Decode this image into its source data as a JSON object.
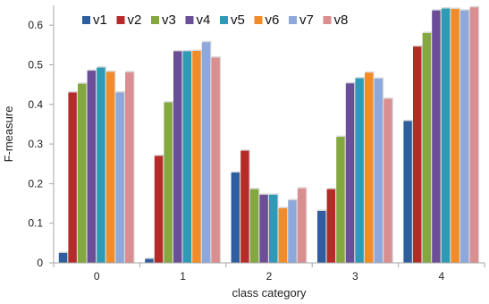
{
  "chart_data": {
    "type": "bar",
    "title": "",
    "xlabel": "class category",
    "ylabel": "F-measure",
    "categories": [
      "0",
      "1",
      "2",
      "3",
      "4"
    ],
    "ylim": [
      0,
      0.65
    ],
    "yticks": [
      "0",
      "0.1",
      "0.2",
      "0.3",
      "0.4",
      "0.5",
      "0.6"
    ],
    "grid": false,
    "legend_position": "top",
    "series": [
      {
        "name": "v1",
        "color": "#2E5E9E",
        "values": [
          0.025,
          0.01,
          0.228,
          0.131,
          0.358
        ]
      },
      {
        "name": "v2",
        "color": "#B52B27",
        "values": [
          0.43,
          0.27,
          0.283,
          0.186,
          0.546
        ]
      },
      {
        "name": "v3",
        "color": "#84A83F",
        "values": [
          0.452,
          0.405,
          0.186,
          0.318,
          0.58
        ]
      },
      {
        "name": "v4",
        "color": "#6A4E97",
        "values": [
          0.485,
          0.534,
          0.172,
          0.453,
          0.637
        ]
      },
      {
        "name": "v5",
        "color": "#2E9AB5",
        "values": [
          0.493,
          0.534,
          0.172,
          0.466,
          0.642
        ]
      },
      {
        "name": "v6",
        "color": "#F28C28",
        "values": [
          0.482,
          0.535,
          0.138,
          0.48,
          0.641
        ]
      },
      {
        "name": "v7",
        "color": "#8FA8DB",
        "values": [
          0.43,
          0.557,
          0.158,
          0.465,
          0.637
        ]
      },
      {
        "name": "v8",
        "color": "#D98F8F",
        "values": [
          0.481,
          0.518,
          0.188,
          0.414,
          0.645
        ]
      }
    ]
  }
}
